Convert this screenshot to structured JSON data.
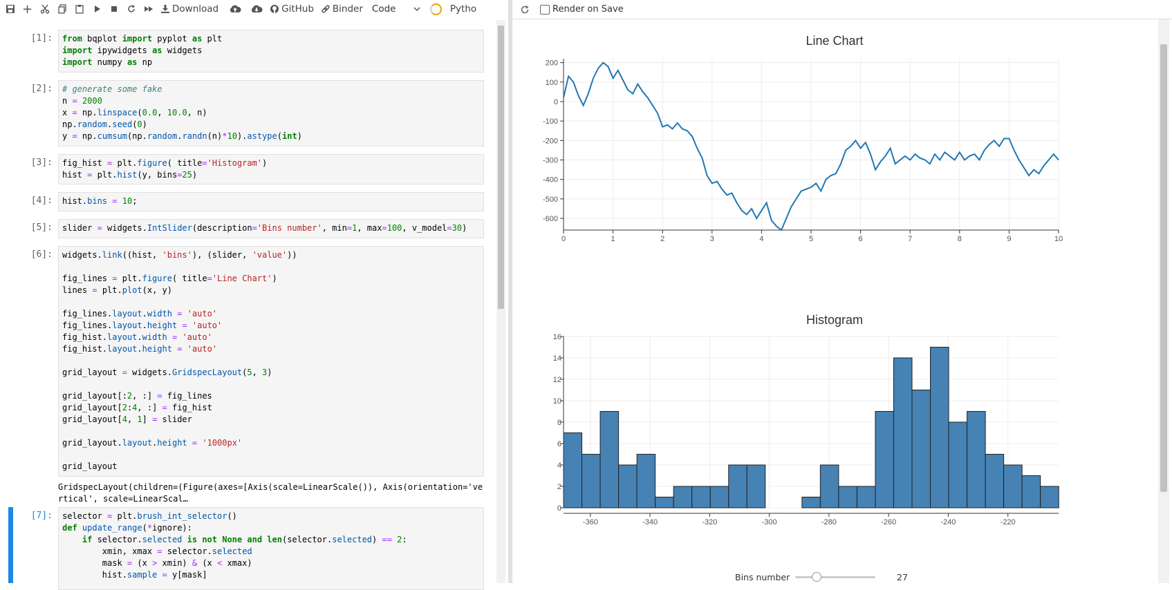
{
  "toolbar": {
    "download_label": "Download",
    "github_label": "GitHub",
    "binder_label": "Binder",
    "cell_type": "Code",
    "kernel_name": "Pytho"
  },
  "right_toolbar": {
    "render_on_save": "Render on Save"
  },
  "cells": [
    {
      "prompt": "[1]:"
    },
    {
      "prompt": "[2]:"
    },
    {
      "prompt": "[3]:"
    },
    {
      "prompt": "[4]:"
    },
    {
      "prompt": "[5]:"
    },
    {
      "prompt": "[6]:",
      "output": "GridspecLayout(children=(Figure(axes=[Axis(scale=LinearScale()), Axis(orientation='ve\nrtical', scale=LinearScal…"
    },
    {
      "prompt": "[7]:"
    }
  ],
  "slider": {
    "description": "Bins number",
    "value": "27",
    "min": 1,
    "max": 100,
    "level": 27
  },
  "chart_data": [
    {
      "type": "line",
      "title": "Line Chart",
      "xlim": [
        0,
        10
      ],
      "ylim": [
        -660,
        220
      ],
      "x_ticks": [
        "0",
        "1",
        "2",
        "3",
        "4",
        "5",
        "6",
        "7",
        "8",
        "9",
        "10"
      ],
      "y_ticks": [
        "200",
        "100",
        "0",
        "-100",
        "-200",
        "-300",
        "-400",
        "-500",
        "-600"
      ],
      "x": [
        0,
        0.1,
        0.2,
        0.3,
        0.4,
        0.5,
        0.6,
        0.7,
        0.8,
        0.9,
        1.0,
        1.1,
        1.2,
        1.3,
        1.4,
        1.5,
        1.6,
        1.7,
        1.8,
        1.9,
        2.0,
        2.1,
        2.2,
        2.3,
        2.4,
        2.5,
        2.6,
        2.7,
        2.8,
        2.9,
        3.0,
        3.1,
        3.2,
        3.3,
        3.4,
        3.5,
        3.6,
        3.7,
        3.8,
        3.9,
        4.0,
        4.1,
        4.2,
        4.3,
        4.4,
        4.5,
        4.6,
        4.7,
        4.8,
        4.9,
        5.0,
        5.1,
        5.2,
        5.3,
        5.4,
        5.5,
        5.6,
        5.7,
        5.8,
        5.9,
        6.0,
        6.1,
        6.2,
        6.3,
        6.4,
        6.5,
        6.6,
        6.7,
        6.8,
        6.9,
        7.0,
        7.1,
        7.2,
        7.3,
        7.4,
        7.5,
        7.6,
        7.7,
        7.8,
        7.9,
        8.0,
        8.1,
        8.2,
        8.3,
        8.4,
        8.5,
        8.6,
        8.7,
        8.8,
        8.9,
        9.0,
        9.1,
        9.2,
        9.3,
        9.4,
        9.5,
        9.6,
        9.7,
        9.8,
        9.9,
        10.0
      ],
      "y": [
        20,
        130,
        100,
        30,
        -20,
        40,
        120,
        170,
        200,
        180,
        120,
        160,
        110,
        60,
        40,
        90,
        50,
        20,
        -20,
        -60,
        -130,
        -120,
        -140,
        -110,
        -140,
        -150,
        -180,
        -240,
        -290,
        -380,
        -420,
        -410,
        -450,
        -480,
        -470,
        -520,
        -560,
        -580,
        -550,
        -600,
        -560,
        -520,
        -610,
        -640,
        -660,
        -600,
        -540,
        -500,
        -460,
        -450,
        -440,
        -420,
        -460,
        -400,
        -380,
        -370,
        -320,
        -250,
        -230,
        -200,
        -240,
        -210,
        -270,
        -350,
        -310,
        -280,
        -240,
        -320,
        -300,
        -280,
        -300,
        -270,
        -290,
        -300,
        -320,
        -270,
        -300,
        -260,
        -280,
        -300,
        -260,
        -300,
        -280,
        -270,
        -300,
        -250,
        -220,
        -200,
        -230,
        -190,
        -190,
        -250,
        -300,
        -340,
        -380,
        -350,
        -370,
        -330,
        -300,
        -270,
        -300
      ],
      "color": "#1f77b4"
    },
    {
      "type": "bar",
      "title": "Histogram",
      "xlim": [
        -369,
        -203
      ],
      "ylim": [
        0,
        16
      ],
      "x_ticks": [
        "-360",
        "-340",
        "-320",
        "-300",
        "-280",
        "-260",
        "-240",
        "-220"
      ],
      "y_ticks": [
        "0",
        "2",
        "4",
        "6",
        "8",
        "10",
        "12",
        "14",
        "16"
      ],
      "bin_start": -369,
      "bin_width": 6.15,
      "values": [
        7,
        5,
        9,
        4,
        5,
        1,
        2,
        2,
        2,
        4,
        4,
        0,
        0,
        1,
        4,
        2,
        2,
        9,
        14,
        11,
        15,
        8,
        9,
        5,
        4,
        3,
        2
      ],
      "color": "#4682b4"
    }
  ]
}
